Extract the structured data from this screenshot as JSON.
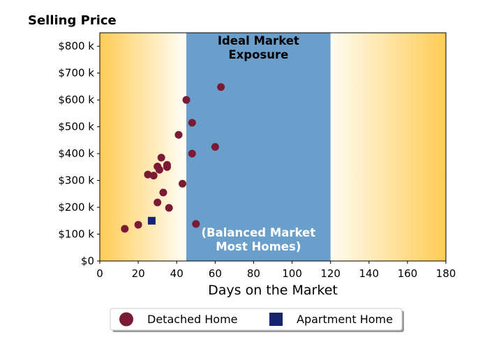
{
  "chart_data": {
    "type": "scatter",
    "title": "Selling Price",
    "xlabel": "Days on the Market",
    "ylabel": "",
    "xlim": [
      0,
      180
    ],
    "ylim": [
      0,
      850000
    ],
    "x_ticks": [
      0,
      20,
      40,
      60,
      80,
      100,
      120,
      140,
      160,
      180
    ],
    "y_ticks": [
      0,
      100000,
      200000,
      300000,
      400000,
      500000,
      600000,
      700000,
      800000
    ],
    "y_tick_labels": [
      "$0",
      "$100 k",
      "$200 k",
      "$300 k",
      "$400 k",
      "$500 k",
      "$600 k",
      "$700 k",
      "$800 k"
    ],
    "band": {
      "x_range": [
        45,
        120
      ],
      "label_top": "Ideal Market\nExposure",
      "label_bottom": "(Balanced Market\nMost Homes)",
      "color": "#6a9fcc"
    },
    "background_gradient": {
      "edge_color": "#ffcc55",
      "inner_color": "#fffdf5"
    },
    "series": [
      {
        "name": "Detached Home",
        "marker": "circle",
        "color": "#7b1a35",
        "points": [
          {
            "x": 13,
            "y": 120000
          },
          {
            "x": 20,
            "y": 135000
          },
          {
            "x": 25,
            "y": 322000
          },
          {
            "x": 28,
            "y": 318000
          },
          {
            "x": 30,
            "y": 352000
          },
          {
            "x": 31,
            "y": 340000
          },
          {
            "x": 32,
            "y": 385000
          },
          {
            "x": 30,
            "y": 218000
          },
          {
            "x": 33,
            "y": 255000
          },
          {
            "x": 35,
            "y": 358000
          },
          {
            "x": 35,
            "y": 350000
          },
          {
            "x": 36,
            "y": 198000
          },
          {
            "x": 41,
            "y": 470000
          },
          {
            "x": 43,
            "y": 288000
          },
          {
            "x": 45,
            "y": 600000
          },
          {
            "x": 48,
            "y": 515000
          },
          {
            "x": 48,
            "y": 400000
          },
          {
            "x": 50,
            "y": 138000
          },
          {
            "x": 60,
            "y": 425000
          },
          {
            "x": 63,
            "y": 648000
          }
        ]
      },
      {
        "name": "Apartment Home",
        "marker": "square",
        "color": "#152570",
        "points": [
          {
            "x": 27,
            "y": 150000
          }
        ]
      }
    ],
    "legend": {
      "placement": "bottom-center"
    }
  }
}
